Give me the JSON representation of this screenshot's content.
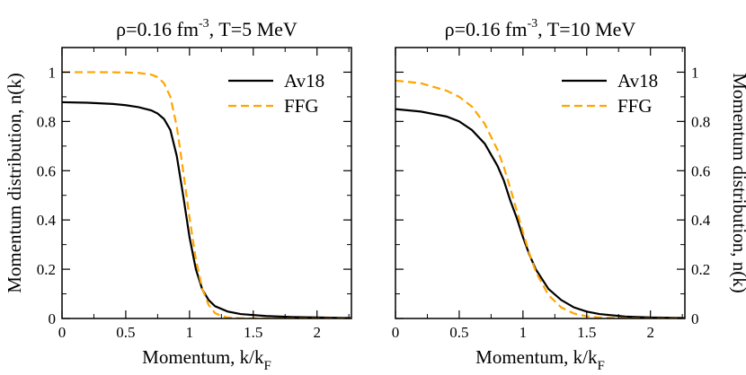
{
  "chart_data": [
    {
      "type": "line",
      "title": {
        "prefix": "ρ=0.16 fm",
        "sup": "-3",
        "suffix": ", T=5 MeV"
      },
      "xlabel": {
        "main": "Momentum, k/k",
        "sub": "F"
      },
      "ylabel": "Momentum distribution, n(k)",
      "xlim": [
        0,
        2.27
      ],
      "ylim": [
        0,
        1.1
      ],
      "xticks": [
        "0",
        "0.5",
        "1",
        "1.5",
        "2"
      ],
      "yticks": [
        "0",
        "0.2",
        "0.4",
        "0.6",
        "0.8",
        "1"
      ],
      "legend_position": "top-right",
      "series": [
        {
          "name": "Av18",
          "color": "#000000",
          "dash": "solid",
          "x": [
            0,
            0.2,
            0.4,
            0.5,
            0.6,
            0.7,
            0.75,
            0.8,
            0.85,
            0.9,
            0.95,
            1.0,
            1.05,
            1.1,
            1.15,
            1.2,
            1.3,
            1.4,
            1.6,
            1.8,
            2.0,
            2.27
          ],
          "y": [
            0.878,
            0.876,
            0.871,
            0.866,
            0.858,
            0.845,
            0.832,
            0.81,
            0.765,
            0.66,
            0.5,
            0.33,
            0.2,
            0.118,
            0.075,
            0.05,
            0.028,
            0.018,
            0.01,
            0.006,
            0.004,
            0.002
          ]
        },
        {
          "name": "FFG",
          "color": "#ffa500",
          "dash": "dashed",
          "x": [
            0,
            0.3,
            0.5,
            0.6,
            0.7,
            0.75,
            0.8,
            0.85,
            0.9,
            0.95,
            1.0,
            1.05,
            1.1,
            1.15,
            1.2,
            1.25,
            1.3,
            1.4,
            1.6,
            2.0,
            2.27
          ],
          "y": [
            1.0,
            1.0,
            0.999,
            0.997,
            0.99,
            0.98,
            0.955,
            0.9,
            0.78,
            0.6,
            0.41,
            0.24,
            0.12,
            0.055,
            0.022,
            0.01,
            0.004,
            0.001,
            0.0,
            0.0,
            0.0
          ]
        }
      ]
    },
    {
      "type": "line",
      "title": {
        "prefix": "ρ=0.16 fm",
        "sup": "-3",
        "suffix": ", T=10 MeV"
      },
      "xlabel": {
        "main": "Momentum, k/k",
        "sub": "F"
      },
      "ylabel": "Momentum distribution, n(k)",
      "xlim": [
        0,
        2.27
      ],
      "ylim": [
        0,
        1.1
      ],
      "xticks": [
        "0",
        "0.5",
        "1",
        "1.5",
        "2"
      ],
      "yticks": [
        "0",
        "0.2",
        "0.4",
        "0.6",
        "0.8",
        "1"
      ],
      "legend_position": "top-right",
      "series": [
        {
          "name": "Av18",
          "color": "#000000",
          "dash": "solid",
          "x": [
            0,
            0.2,
            0.4,
            0.5,
            0.6,
            0.7,
            0.8,
            0.85,
            0.9,
            0.95,
            1.0,
            1.05,
            1.1,
            1.2,
            1.3,
            1.4,
            1.5,
            1.6,
            1.8,
            2.0,
            2.27
          ],
          "y": [
            0.85,
            0.84,
            0.82,
            0.8,
            0.765,
            0.71,
            0.62,
            0.56,
            0.48,
            0.41,
            0.33,
            0.26,
            0.2,
            0.12,
            0.075,
            0.045,
            0.028,
            0.018,
            0.008,
            0.004,
            0.002
          ]
        },
        {
          "name": "FFG",
          "color": "#ffa500",
          "dash": "dashed",
          "x": [
            0,
            0.2,
            0.4,
            0.5,
            0.6,
            0.7,
            0.8,
            0.85,
            0.9,
            0.95,
            1.0,
            1.05,
            1.1,
            1.2,
            1.3,
            1.4,
            1.5,
            1.6,
            1.8,
            2.0,
            2.27
          ],
          "y": [
            0.966,
            0.955,
            0.925,
            0.9,
            0.86,
            0.79,
            0.685,
            0.615,
            0.53,
            0.44,
            0.35,
            0.265,
            0.19,
            0.095,
            0.045,
            0.02,
            0.009,
            0.004,
            0.001,
            0.0,
            0.0
          ]
        }
      ]
    }
  ]
}
